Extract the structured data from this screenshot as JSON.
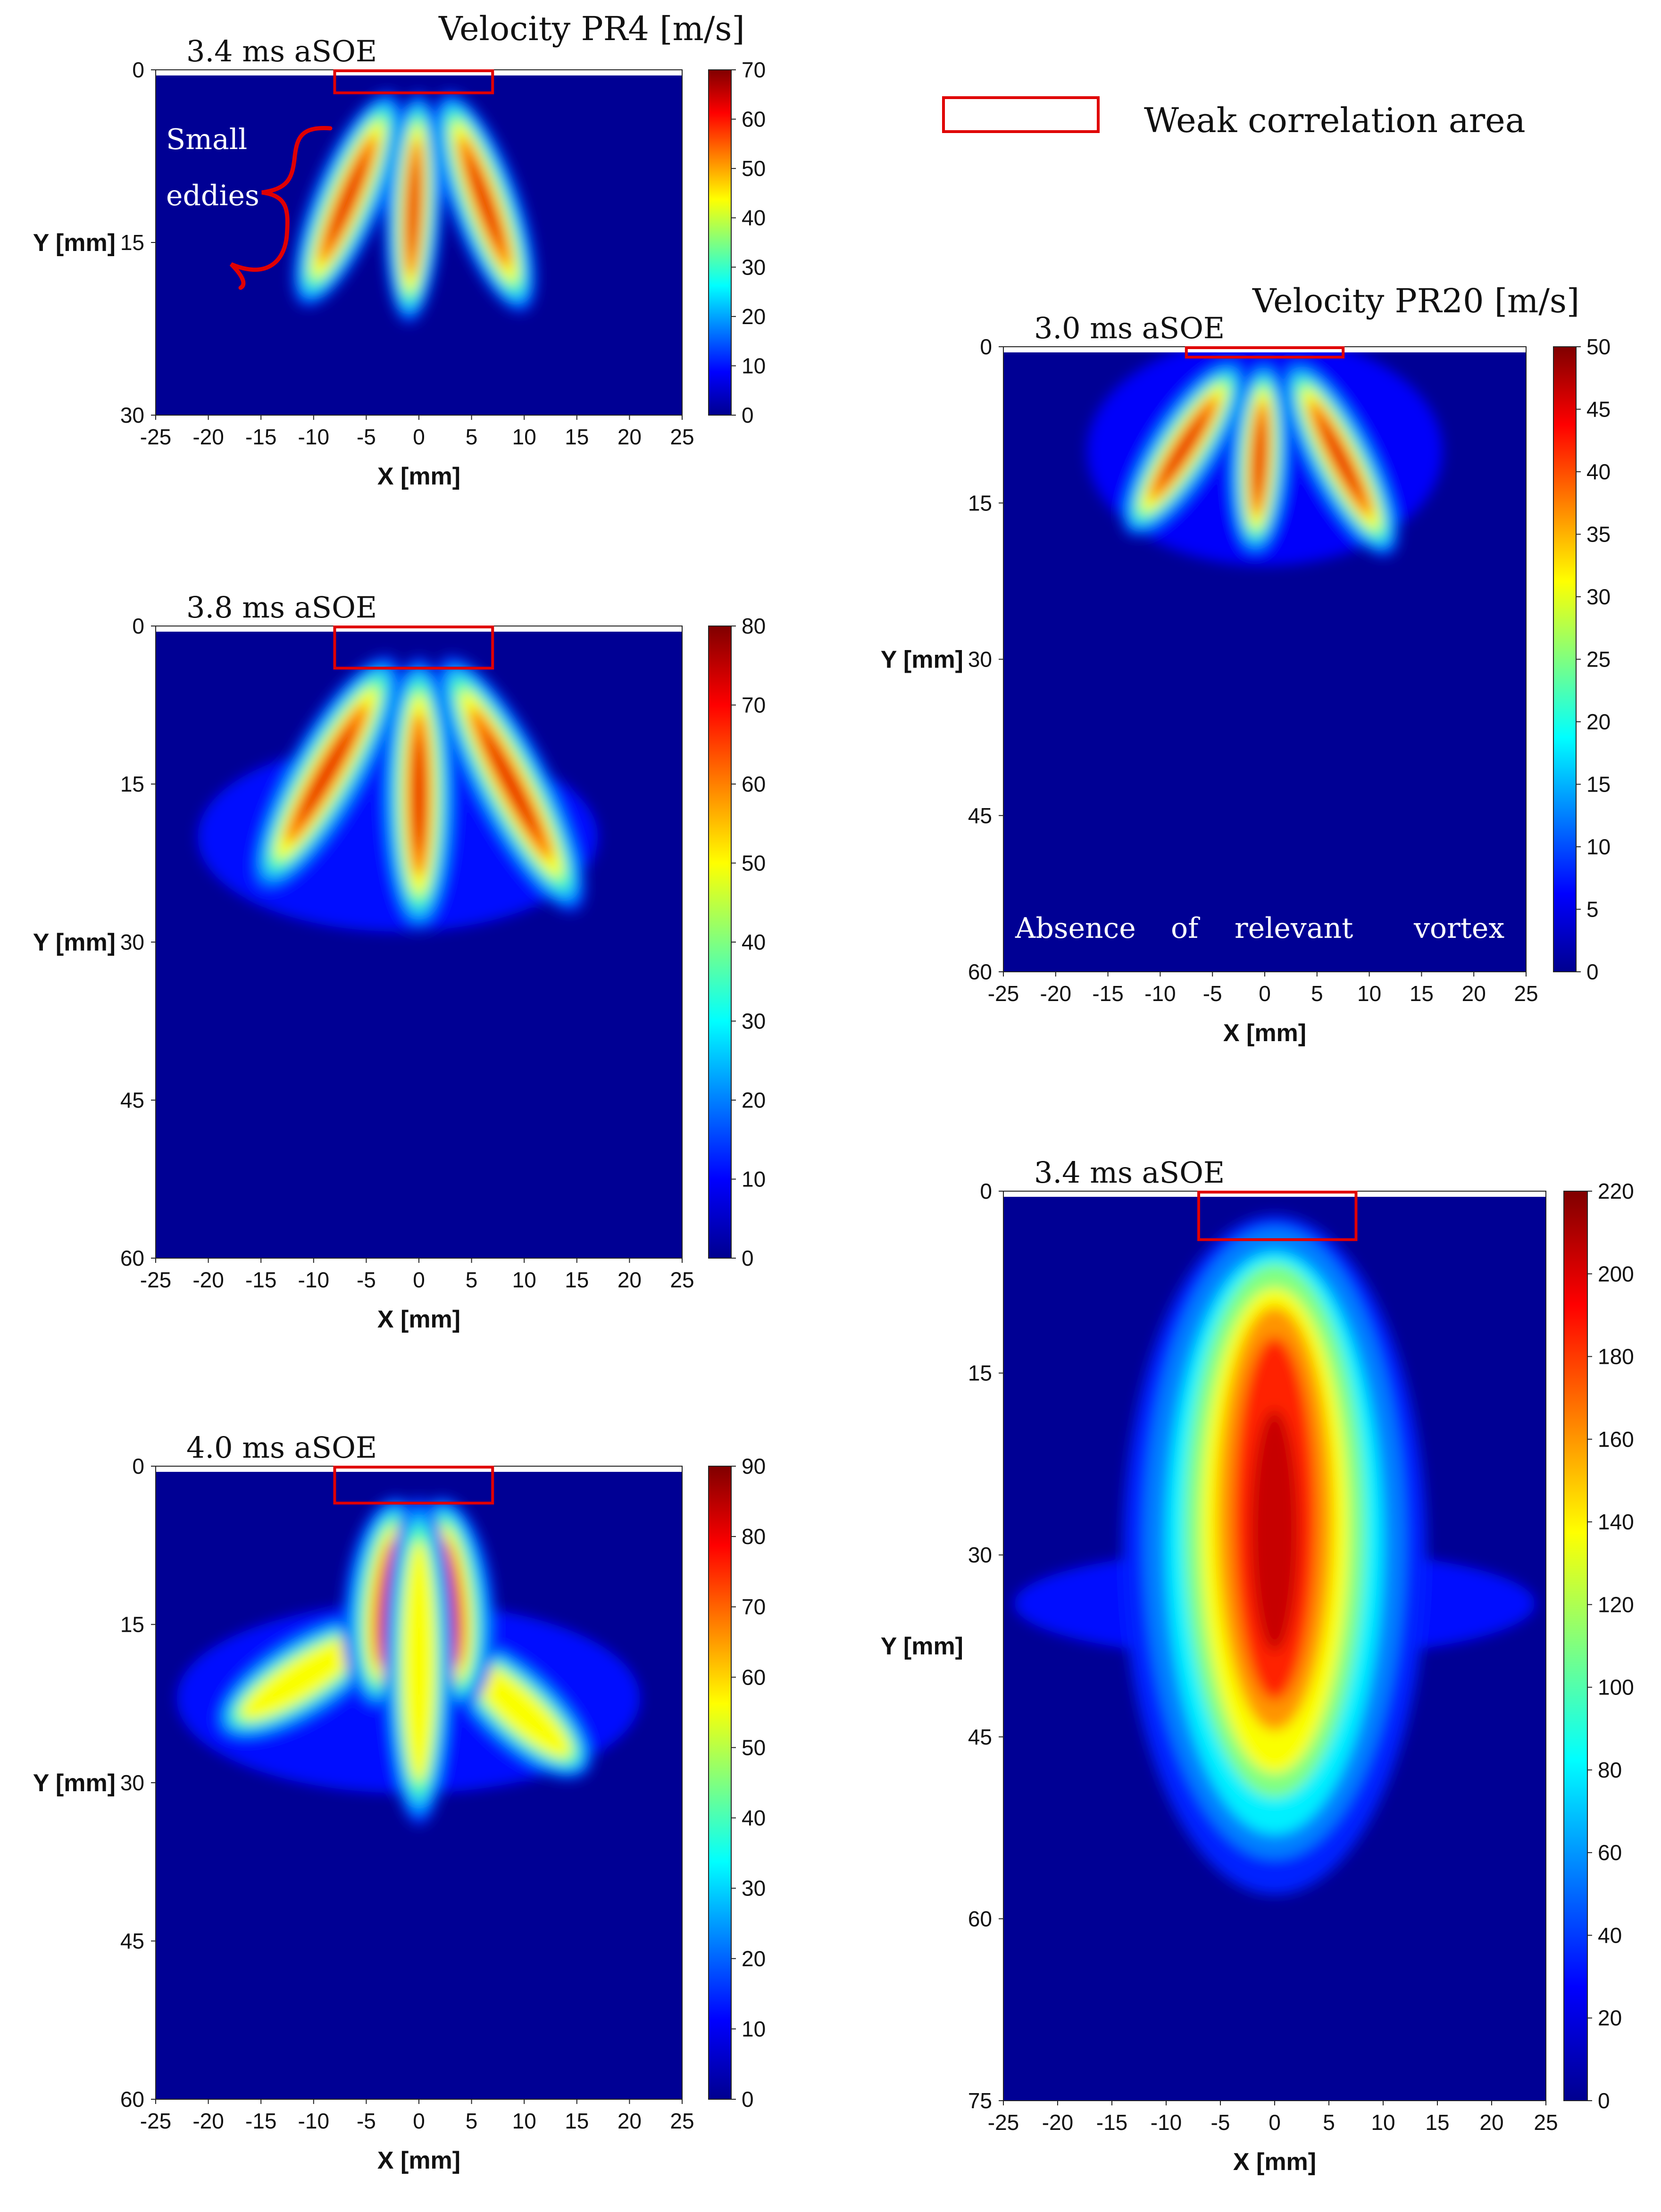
{
  "header": {
    "pr4_title": "Velocity PR4 [m/s]",
    "pr20_title": "Velocity PR20 [m/s]"
  },
  "legend": {
    "label": "Weak correlation area",
    "box_color": "#e00000"
  },
  "annotations": {
    "small_eddies": "Small\neddies",
    "absence_vortex": "Absence of relevant vortex",
    "annotation_color": "#e00000"
  },
  "colormap": "jet",
  "chart_data": [
    {
      "type": "heatmap",
      "time_label": "3.4 ms aSOE",
      "group": "PR4",
      "xlabel": "X [mm]",
      "ylabel": "Y [mm]",
      "xlim": [
        -25,
        25
      ],
      "ylim": [
        0,
        30
      ],
      "x_ticks": [
        -25,
        -20,
        -15,
        -10,
        -5,
        0,
        5,
        10,
        15,
        20,
        25
      ],
      "y_ticks": [
        0,
        15,
        30
      ],
      "colorbar_ticks": [
        0,
        10,
        20,
        30,
        40,
        50,
        60,
        70
      ],
      "vmax": 70,
      "pattern": "three_jets_short",
      "weak_correlation_box": {
        "x": [
          -8,
          7
        ],
        "y": [
          0,
          2
        ]
      },
      "annotation": "small_eddies"
    },
    {
      "type": "heatmap",
      "time_label": "3.8 ms aSOE",
      "group": "PR4",
      "xlabel": "X [mm]",
      "ylabel": "Y [mm]",
      "xlim": [
        -25,
        25
      ],
      "ylim": [
        0,
        60
      ],
      "x_ticks": [
        -25,
        -20,
        -15,
        -10,
        -5,
        0,
        5,
        10,
        15,
        20,
        25
      ],
      "y_ticks": [
        0,
        15,
        30,
        45,
        60
      ],
      "colorbar_ticks": [
        0,
        10,
        20,
        30,
        40,
        50,
        60,
        70,
        80
      ],
      "vmax": 80,
      "pattern": "three_jets_long",
      "weak_correlation_box": {
        "x": [
          -8,
          7
        ],
        "y": [
          0,
          4
        ]
      }
    },
    {
      "type": "heatmap",
      "time_label": "4.0 ms aSOE",
      "group": "PR4",
      "xlabel": "X [mm]",
      "ylabel": "Y [mm]",
      "xlim": [
        -25,
        25
      ],
      "ylim": [
        0,
        60
      ],
      "x_ticks": [
        -25,
        -20,
        -15,
        -10,
        -5,
        0,
        5,
        10,
        15,
        20,
        25
      ],
      "y_ticks": [
        0,
        15,
        30,
        45,
        60
      ],
      "colorbar_ticks": [
        0,
        10,
        20,
        30,
        40,
        50,
        60,
        70,
        80,
        90
      ],
      "vmax": 90,
      "pattern": "three_jets_merged",
      "weak_correlation_box": {
        "x": [
          -8,
          7
        ],
        "y": [
          0,
          3.5
        ]
      }
    },
    {
      "type": "heatmap",
      "time_label": "3.0 ms aSOE",
      "group": "PR20",
      "xlabel": "X [mm]",
      "ylabel": "Y [mm]",
      "xlim": [
        -25,
        25
      ],
      "ylim": [
        0,
        60
      ],
      "x_ticks": [
        -25,
        -20,
        -15,
        -10,
        -5,
        0,
        5,
        10,
        15,
        20,
        25
      ],
      "y_ticks": [
        0,
        15,
        30,
        45,
        60
      ],
      "colorbar_ticks": [
        0,
        5,
        10,
        15,
        20,
        25,
        30,
        35,
        40,
        45,
        50
      ],
      "vmax": 50,
      "pattern": "three_jets_wide",
      "weak_correlation_box": {
        "x": [
          -7.5,
          7.5
        ],
        "y": [
          0,
          1
        ]
      },
      "annotation": "absence_vortex"
    },
    {
      "type": "heatmap",
      "time_label": "3.4 ms aSOE",
      "group": "PR20",
      "xlabel": "X [mm]",
      "ylabel": "Y [mm]",
      "xlim": [
        -25,
        25
      ],
      "ylim": [
        0,
        75
      ],
      "x_ticks": [
        -25,
        -20,
        -15,
        -10,
        -5,
        0,
        5,
        10,
        15,
        20,
        25
      ],
      "y_ticks": [
        0,
        15,
        30,
        45,
        60,
        75
      ],
      "colorbar_ticks": [
        0,
        20,
        40,
        60,
        80,
        100,
        120,
        140,
        160,
        180,
        200,
        220
      ],
      "vmax": 220,
      "pattern": "single_plume",
      "weak_correlation_box": {
        "x": [
          -7,
          7.5
        ],
        "y": [
          0,
          4
        ]
      }
    }
  ]
}
